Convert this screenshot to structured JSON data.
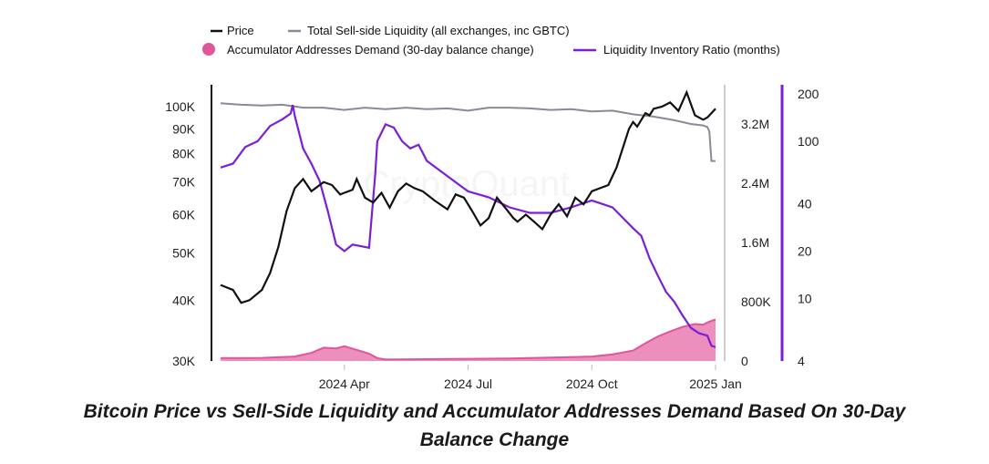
{
  "chart_data": {
    "type": "line",
    "title": "Bitcoin Price vs Sell-Side Liquidity and Accumulator Addresses Demand Based On 30-Day Balance Change",
    "watermark": "CryptoQuant",
    "x_labels": [
      "2024 Apr",
      "2024 Jul",
      "2024 Oct",
      "2025 Jan"
    ],
    "x_range": [
      0,
      12
    ],
    "x_tick_positions": [
      3,
      6,
      9,
      12
    ],
    "y_left": {
      "scale": "log",
      "range": [
        30000,
        110000
      ],
      "ticks": [
        100000,
        90000,
        80000,
        70000,
        60000,
        50000,
        40000,
        30000
      ],
      "labels": [
        "100K",
        "90K",
        "80K",
        "70K",
        "60K",
        "50K",
        "40K",
        "30K"
      ]
    },
    "y_right1": {
      "scale": "linear",
      "range": [
        0,
        3700000
      ],
      "ticks": [
        3200000,
        2400000,
        1600000,
        800000,
        0
      ],
      "labels": [
        "3.2M",
        "2.4M",
        "1.6M",
        "800K",
        "0"
      ]
    },
    "y_right2": {
      "scale": "log",
      "range": [
        4,
        200
      ],
      "ticks": [
        200,
        100,
        40,
        20,
        10,
        4
      ],
      "labels": [
        "200",
        "100",
        "40",
        "20",
        "10",
        "4"
      ]
    },
    "legend": {
      "price": "Price",
      "liquidity": "Total Sell-side Liquidity (all exchanges, inc GBTC)",
      "accumulator": "Accumulator Addresses Demand (30-day balance change)",
      "ratio": "Liquidity Inventory Ratio (months)"
    },
    "series": [
      {
        "name": "Price",
        "axis": "left",
        "color": "#111111",
        "x": [
          0,
          0.3,
          0.5,
          0.7,
          1.0,
          1.2,
          1.4,
          1.6,
          1.8,
          2.0,
          2.2,
          2.5,
          2.7,
          2.9,
          3.0,
          3.2,
          3.3,
          3.5,
          3.7,
          3.9,
          4.1,
          4.3,
          4.5,
          4.7,
          4.9,
          5.2,
          5.5,
          5.7,
          5.9,
          6.1,
          6.3,
          6.5,
          6.7,
          6.9,
          7.1,
          7.2,
          7.4,
          7.6,
          7.8,
          8.0,
          8.2,
          8.4,
          8.6,
          8.8,
          9.0,
          9.2,
          9.4,
          9.6,
          9.9,
          10.0,
          10.1,
          10.3,
          10.4,
          10.5,
          10.7,
          10.9,
          11.1,
          11.3,
          11.5,
          11.7,
          11.8,
          11.9,
          12.0
        ],
        "values": [
          43000,
          42000,
          39500,
          40000,
          42000,
          45500,
          51500,
          61000,
          68000,
          71000,
          67000,
          70000,
          69000,
          66000,
          66500,
          67500,
          71000,
          65000,
          63500,
          66500,
          62000,
          67000,
          69500,
          68000,
          67000,
          64000,
          61500,
          66000,
          65000,
          61000,
          57000,
          59000,
          65000,
          62000,
          59000,
          58000,
          60000,
          58000,
          56000,
          60000,
          63000,
          59500,
          65000,
          63000,
          67000,
          68000,
          69000,
          75000,
          90000,
          93000,
          91000,
          97000,
          96000,
          99000,
          100000,
          102000,
          98000,
          107000,
          96000,
          94000,
          95000,
          97000,
          99000
        ]
      },
      {
        "name": "Total Sell-side Liquidity (all exchanges, inc GBTC)",
        "axis": "right1",
        "color": "#8a8a96",
        "x": [
          0,
          0.5,
          1.0,
          1.5,
          2.0,
          2.5,
          3.0,
          3.5,
          4.0,
          4.5,
          5.0,
          5.5,
          6.0,
          6.5,
          7.0,
          7.5,
          8.0,
          8.5,
          9.0,
          9.5,
          10.0,
          10.5,
          11.0,
          11.4,
          11.7,
          11.8,
          11.85,
          11.9,
          12.0
        ],
        "values": [
          3480000,
          3460000,
          3450000,
          3460000,
          3420000,
          3420000,
          3390000,
          3420000,
          3400000,
          3420000,
          3400000,
          3410000,
          3380000,
          3420000,
          3420000,
          3410000,
          3390000,
          3400000,
          3370000,
          3380000,
          3330000,
          3300000,
          3250000,
          3200000,
          3180000,
          3160000,
          3100000,
          2700000,
          2700000
        ]
      },
      {
        "name": "Liquidity Inventory Ratio (months)",
        "axis": "right2",
        "color": "#7b1fd6",
        "x": [
          0,
          0.3,
          0.6,
          0.9,
          1.2,
          1.5,
          1.7,
          1.75,
          1.8,
          2.0,
          2.2,
          2.4,
          2.6,
          2.8,
          3.0,
          3.2,
          3.6,
          3.75,
          3.8,
          4.0,
          4.2,
          4.4,
          4.6,
          4.8,
          5.0,
          5.5,
          6.0,
          6.5,
          7.0,
          7.5,
          8.0,
          8.5,
          9.0,
          9.5,
          10.0,
          10.2,
          10.4,
          10.6,
          10.8,
          11.0,
          11.2,
          11.4,
          11.6,
          11.8,
          11.9,
          12.0
        ],
        "values": [
          68,
          72,
          92,
          100,
          125,
          138,
          150,
          170,
          145,
          90,
          72,
          56,
          36,
          22,
          20,
          22,
          21,
          62,
          100,
          128,
          122,
          100,
          90,
          95,
          75,
          60,
          48,
          44,
          38,
          35,
          35,
          38,
          42,
          38,
          28,
          25,
          18,
          14,
          11,
          9.5,
          7.8,
          6.5,
          6.0,
          5.8,
          5.0,
          4.9
        ]
      },
      {
        "name": "Accumulator Addresses Demand (30-day balance change)",
        "axis": "right1",
        "color": "#e0569a",
        "fill": "#ec8fbd",
        "x": [
          0,
          1.0,
          1.8,
          2.2,
          2.5,
          2.8,
          3.0,
          3.3,
          3.6,
          3.8,
          4.0,
          5.0,
          6.0,
          7.0,
          8.0,
          9.0,
          9.5,
          10.0,
          10.3,
          10.6,
          10.9,
          11.2,
          11.5,
          11.7,
          11.8,
          11.9,
          12.0
        ],
        "values": [
          40000,
          42000,
          60000,
          110000,
          180000,
          170000,
          200000,
          150000,
          100000,
          40000,
          20000,
          25000,
          30000,
          35000,
          45000,
          60000,
          90000,
          140000,
          240000,
          330000,
          400000,
          460000,
          500000,
          490000,
          520000,
          540000,
          560000
        ]
      }
    ]
  }
}
